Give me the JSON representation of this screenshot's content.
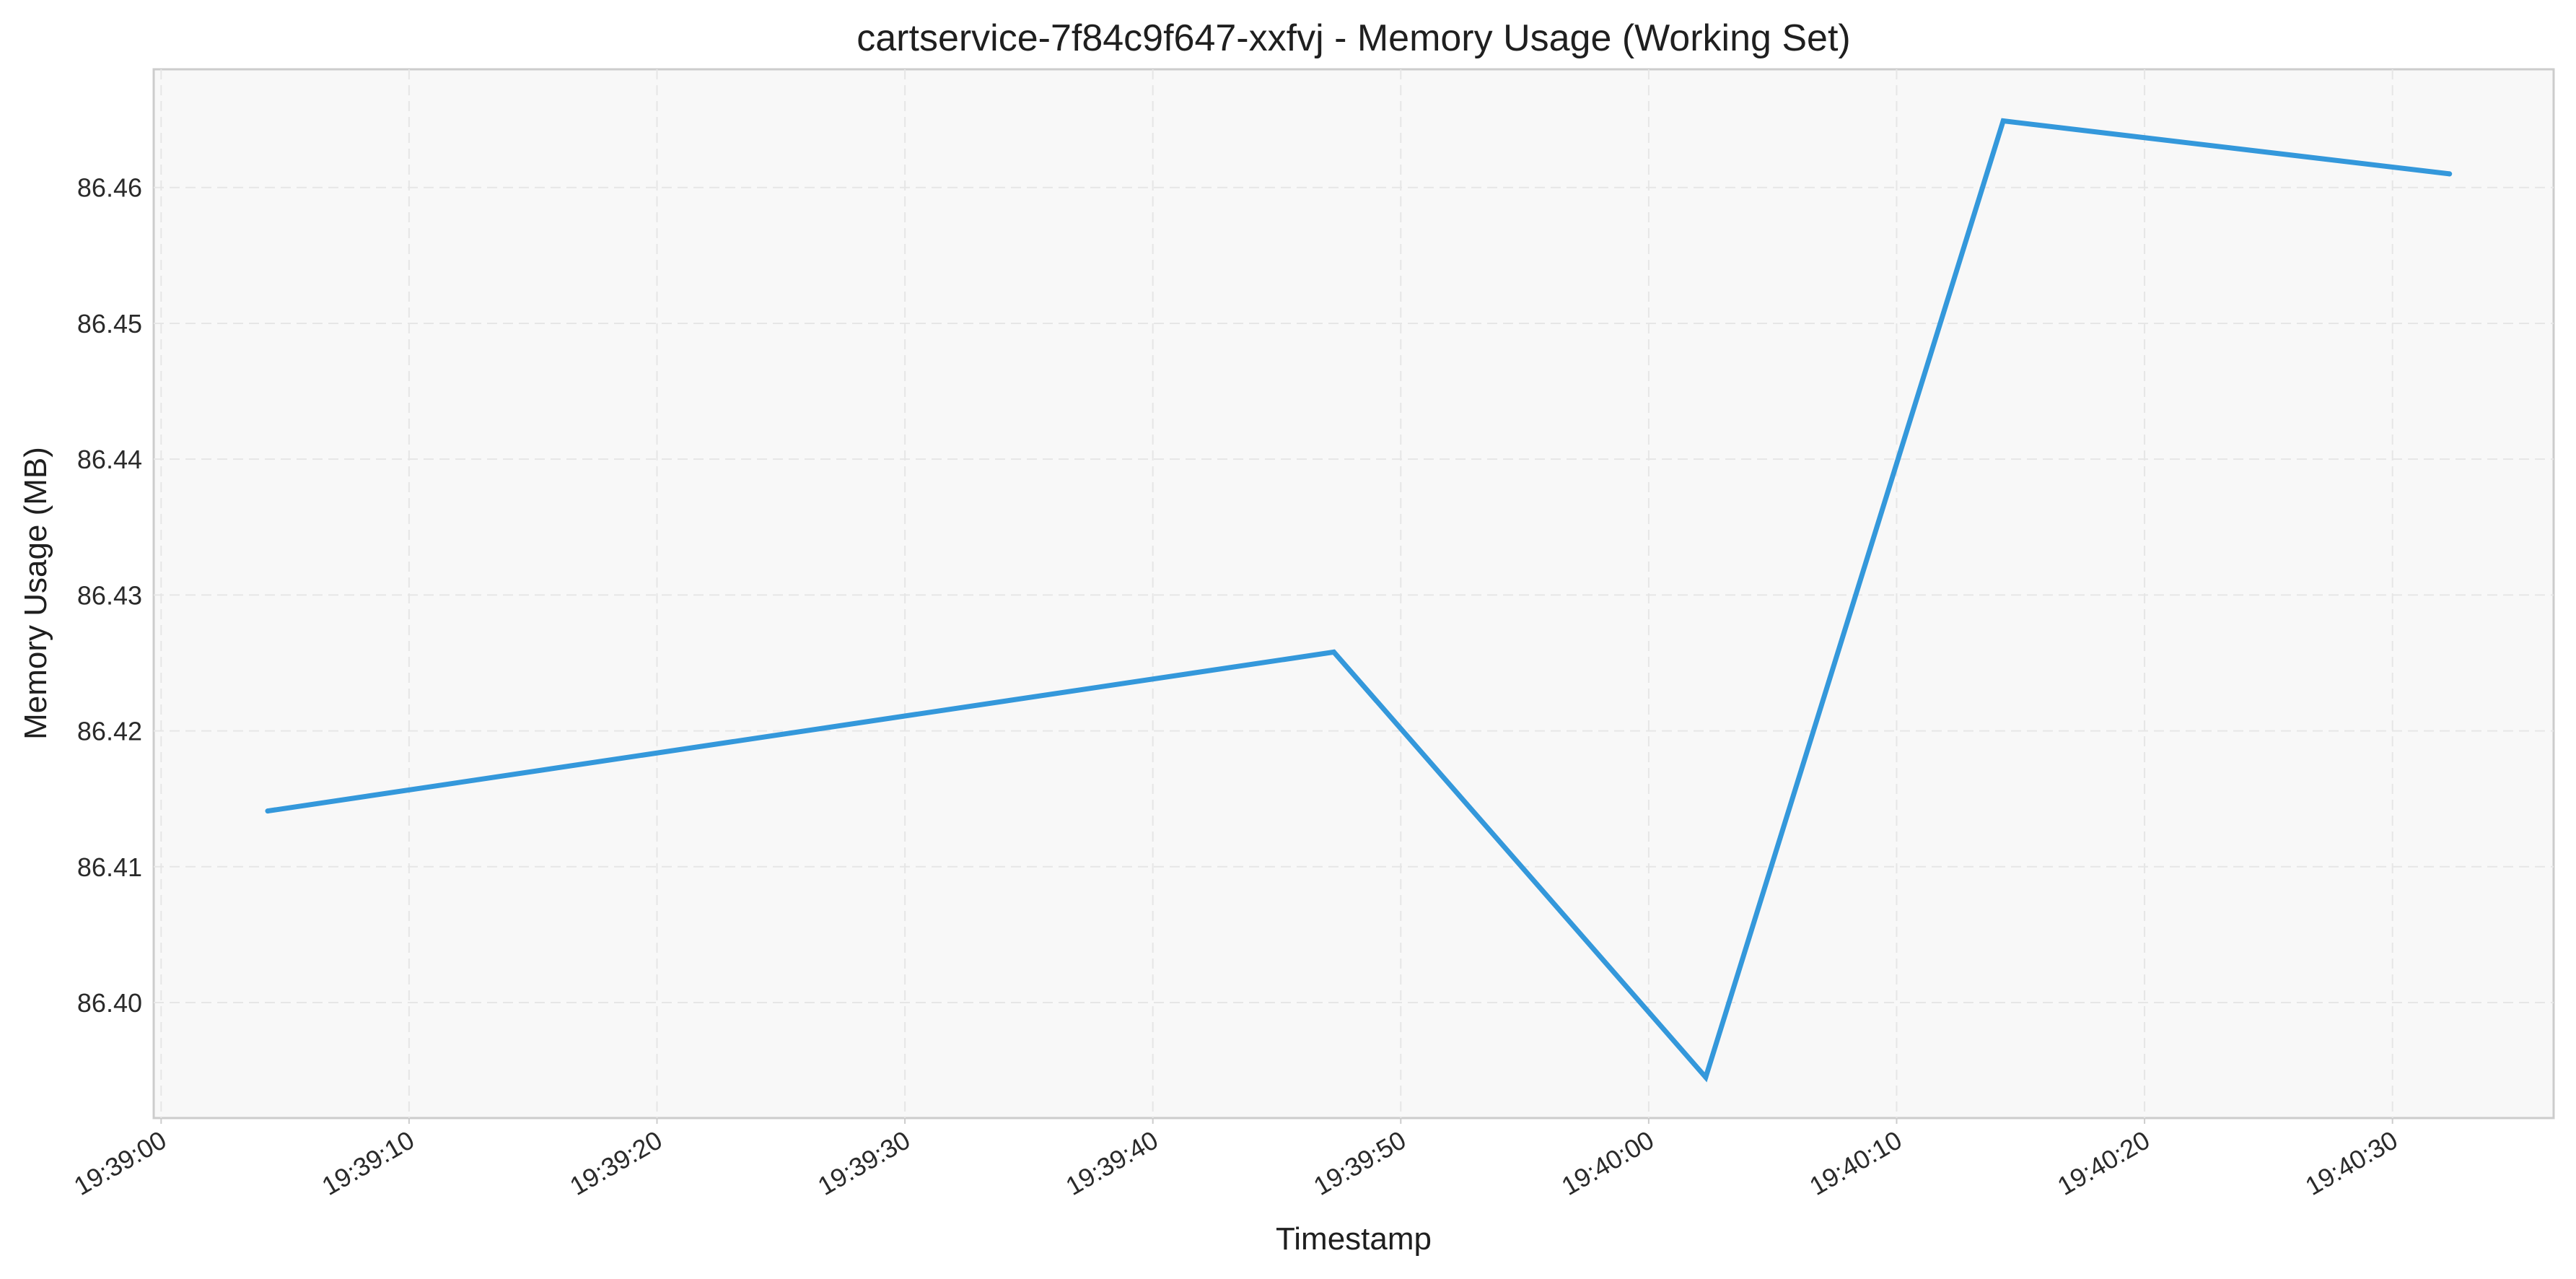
{
  "chart_data": {
    "type": "line",
    "title": "cartservice-7f84c9f647-xxfvj - Memory Usage (Working Set)",
    "xlabel": "Timestamp",
    "ylabel": "Memory Usage (MB)",
    "x_ticks": [
      "19:39:00",
      "19:39:10",
      "19:39:20",
      "19:39:30",
      "19:39:40",
      "19:39:50",
      "19:40:00",
      "19:40:10",
      "19:40:20",
      "19:40:30"
    ],
    "y_ticks": [
      "86.40",
      "86.41",
      "86.42",
      "86.43",
      "86.44",
      "86.45",
      "86.46"
    ],
    "xlim": [
      "19:38:59.7",
      "19:40:36.5"
    ],
    "ylim": [
      86.3915,
      86.4687
    ],
    "grid": true,
    "series": [
      {
        "color": "#3498db",
        "x": [
          "19:39:04.3",
          "19:39:47.3",
          "19:40:02.3",
          "19:40:14.3",
          "19:40:32.3"
        ],
        "y": [
          86.4141,
          86.4258,
          86.3945,
          86.4649,
          86.461
        ]
      }
    ]
  }
}
